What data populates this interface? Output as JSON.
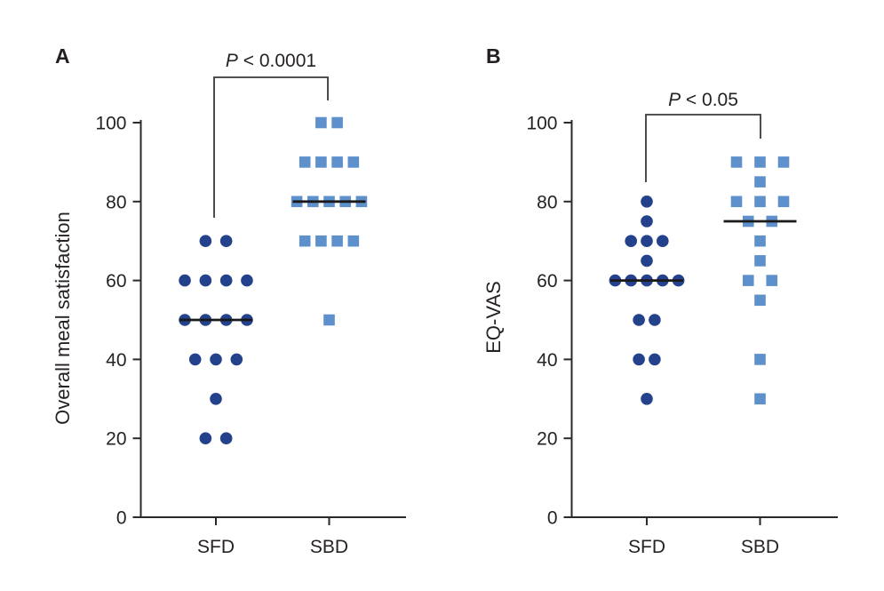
{
  "figure": {
    "background": "#ffffff",
    "panel_letters": [
      "A",
      "B"
    ]
  },
  "style": {
    "axis_color": "#2b2829",
    "text_color": "#262223",
    "median_color": "#1a1a1a",
    "bracket_color": "#3a3a3a",
    "circle_color": "#24418c",
    "square_color": "#5e90cb"
  },
  "chart_data": [
    {
      "type": "scatter",
      "panel_letter": "A",
      "ylabel": "Overall meal satisfaction",
      "xlabel": "",
      "ylim": [
        0,
        100
      ],
      "yticks": [
        0,
        20,
        40,
        60,
        80,
        100
      ],
      "categories": [
        "SFD",
        "SBD"
      ],
      "significance_label": "P < 0.0001",
      "grid": false,
      "legend": "none",
      "series": [
        {
          "name": "SFD",
          "marker": "circle",
          "color": "#24418c",
          "values": [
            70,
            70,
            60,
            60,
            60,
            60,
            50,
            50,
            50,
            50,
            40,
            40,
            40,
            30,
            20,
            20
          ],
          "median": 50,
          "spacing": 23.3
        },
        {
          "name": "SBD",
          "marker": "square",
          "color": "#5e90cb",
          "values": [
            100,
            100,
            90,
            90,
            90,
            90,
            80,
            80,
            80,
            80,
            80,
            70,
            70,
            70,
            70,
            50
          ],
          "median": 80,
          "spacing": 18.2
        }
      ]
    },
    {
      "type": "scatter",
      "panel_letter": "B",
      "ylabel": "EQ-VAS",
      "xlabel": "",
      "ylim": [
        0,
        100
      ],
      "yticks": [
        0,
        20,
        40,
        60,
        80,
        100
      ],
      "categories": [
        "SFD",
        "SBD"
      ],
      "significance_label": "P < 0.05",
      "grid": false,
      "legend": "none",
      "series": [
        {
          "name": "SFD",
          "marker": "circle",
          "color": "#24418c",
          "values": [
            80,
            75,
            70,
            70,
            70,
            65,
            60,
            60,
            60,
            60,
            60,
            50,
            50,
            40,
            40,
            30
          ],
          "median": 60,
          "spacing": 17.8
        },
        {
          "name": "SBD",
          "marker": "square",
          "color": "#5e90cb",
          "values": [
            90,
            90,
            90,
            85,
            80,
            80,
            80,
            75,
            75,
            70,
            65,
            60,
            60,
            55,
            40,
            30
          ],
          "median": 75,
          "spacing": 26.5
        }
      ]
    }
  ]
}
